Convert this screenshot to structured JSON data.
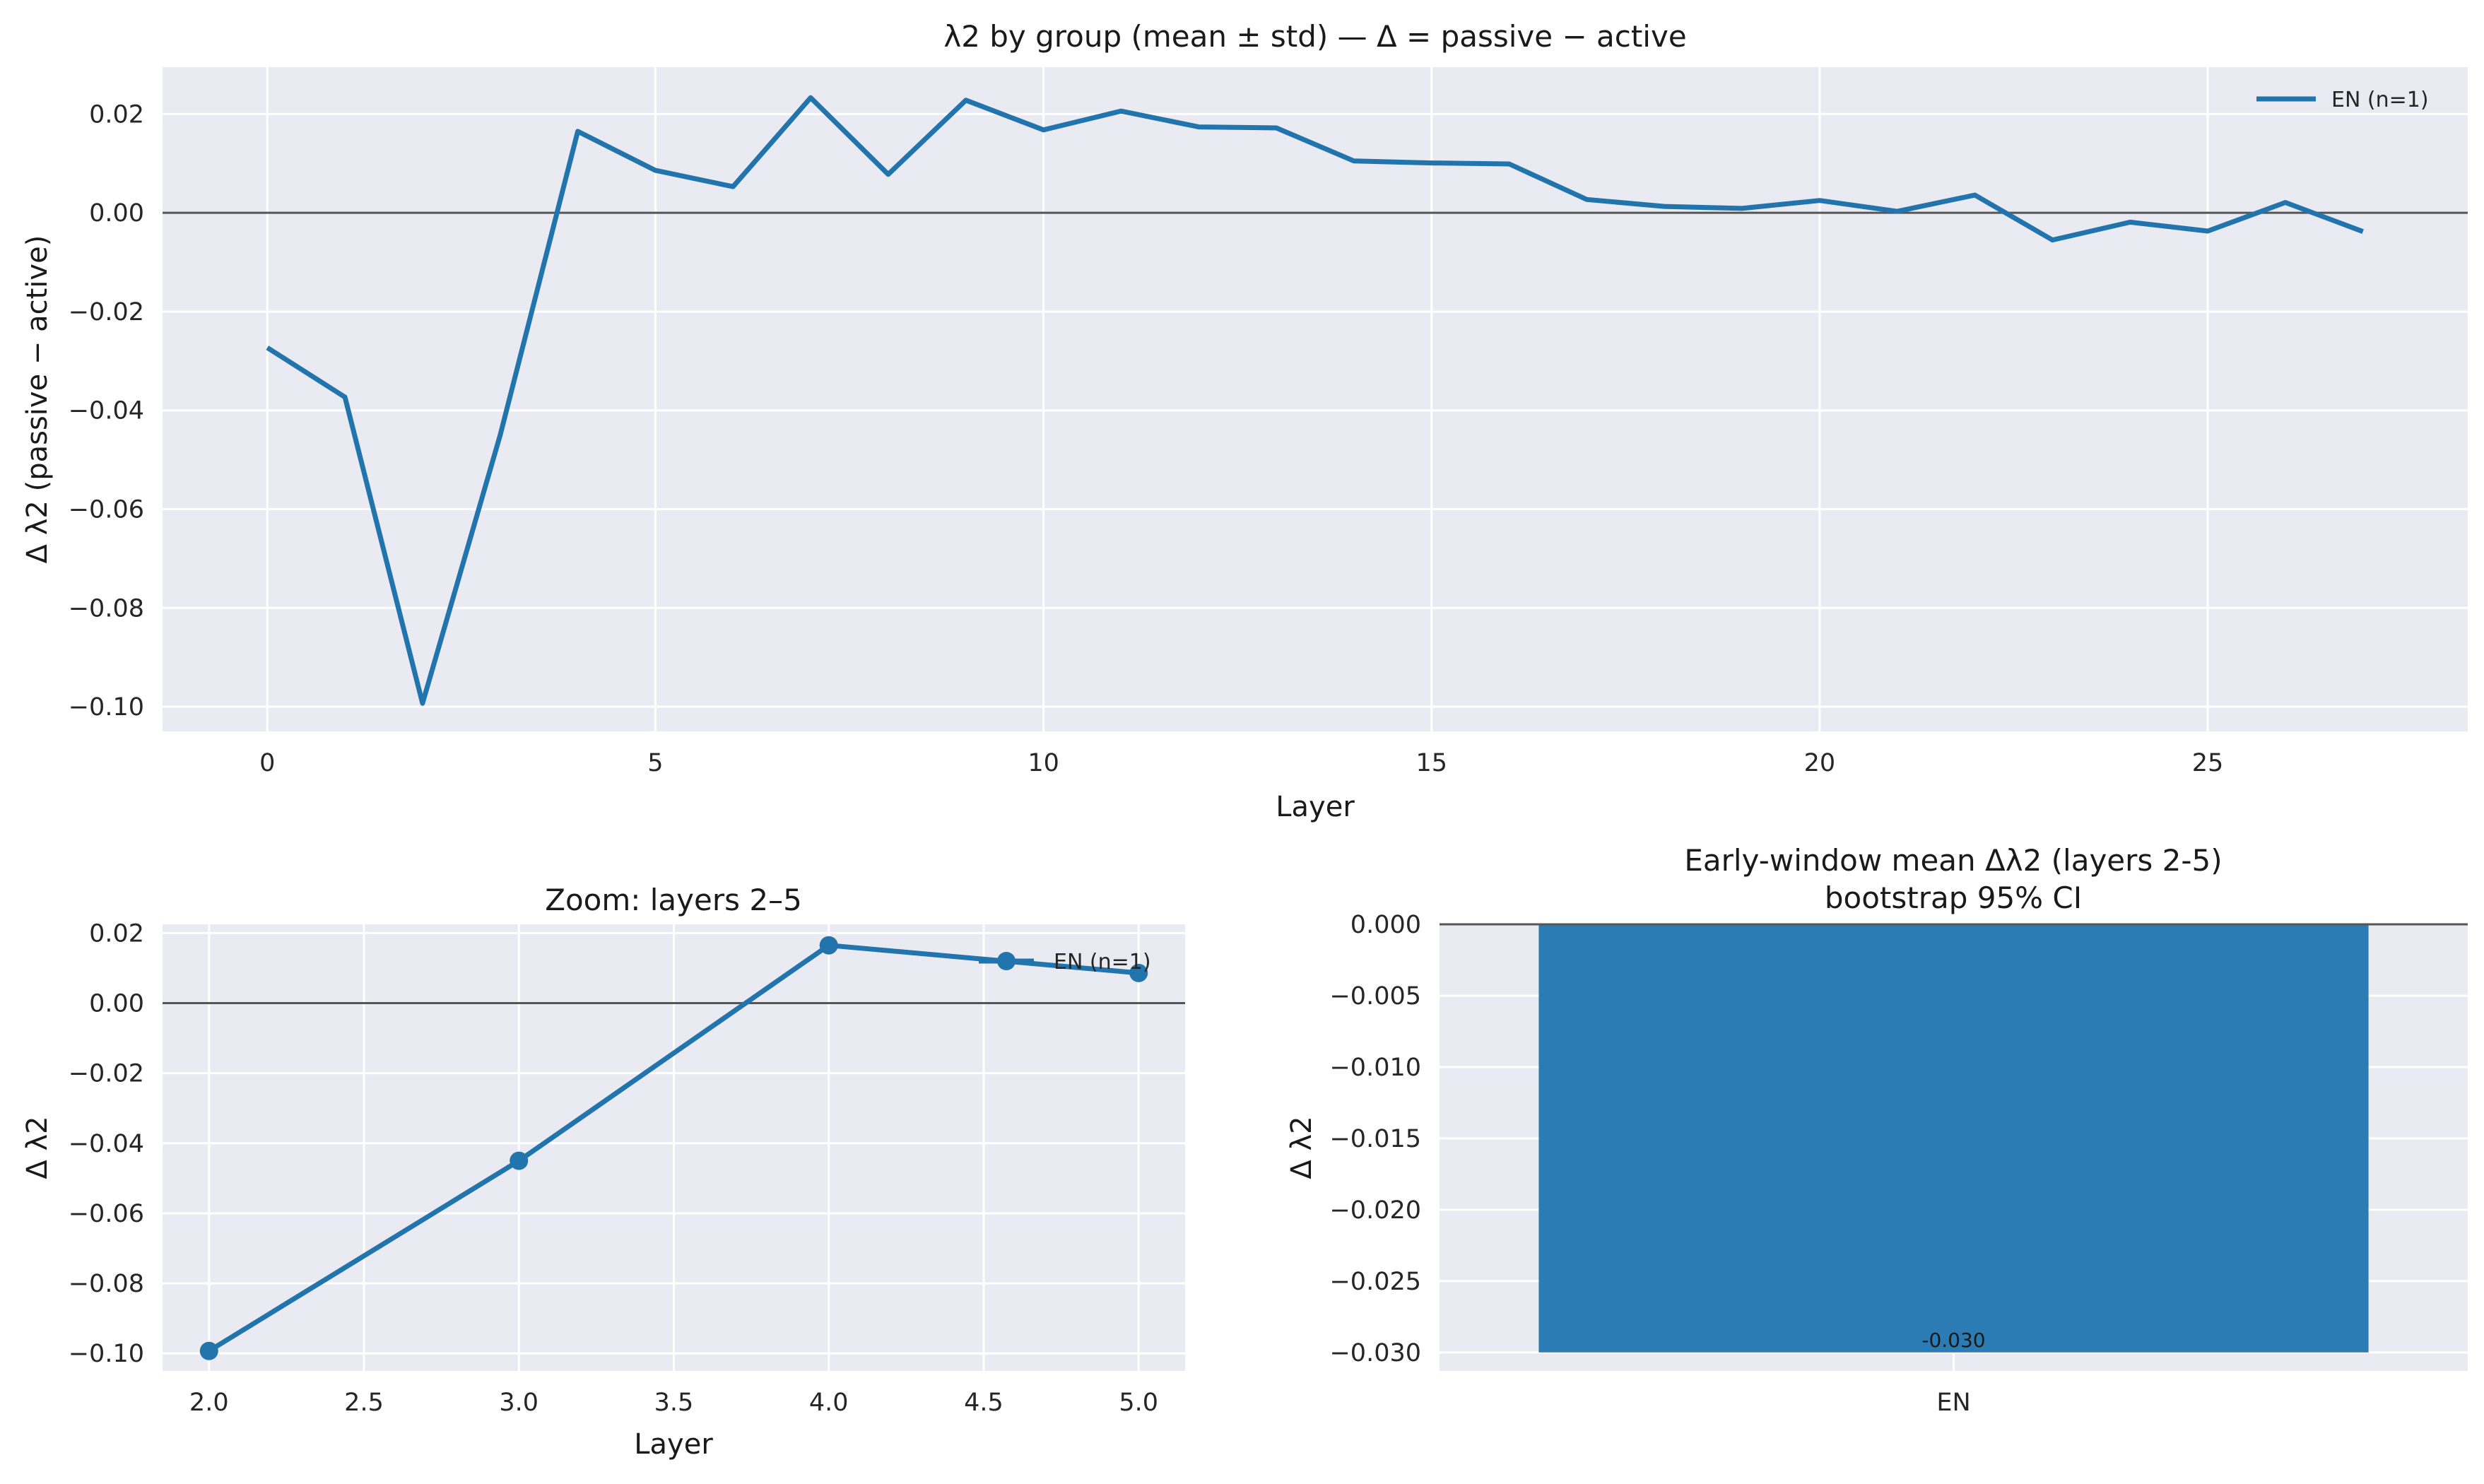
{
  "chart_data": [
    {
      "type": "line",
      "title": "λ2 by group (mean ± std) — Δ = passive − active",
      "xlabel": "Layer",
      "ylabel": "Δ λ2  (passive − active)",
      "xlim": [
        -1.35,
        28.35
      ],
      "ylim": [
        -0.105,
        0.0295
      ],
      "xticks": [
        "0",
        "5",
        "10",
        "15",
        "20",
        "25"
      ],
      "yticks": [
        "0.02",
        "0.00",
        "−0.02",
        "−0.04",
        "−0.06",
        "−0.08",
        "−0.10"
      ],
      "grid": true,
      "legend_position": "top-right",
      "series": [
        {
          "name": "EN (n=1)",
          "x": [
            0,
            1,
            2,
            3,
            4,
            5,
            6,
            7,
            8,
            9,
            10,
            11,
            12,
            13,
            14,
            15,
            16,
            17,
            18,
            19,
            20,
            21,
            22,
            23,
            24,
            25,
            26,
            27
          ],
          "values": [
            -0.0273,
            -0.0373,
            -0.0993,
            -0.045,
            0.0165,
            0.0086,
            0.0053,
            0.0233,
            0.0078,
            0.0228,
            0.0168,
            0.0206,
            0.0174,
            0.0172,
            0.0105,
            0.0101,
            0.0099,
            0.0027,
            0.0013,
            0.0009,
            0.0025,
            0.0003,
            0.0036,
            -0.0055,
            -0.0019,
            -0.0037,
            0.0021,
            -0.0038
          ]
        }
      ],
      "reference_line_y": 0
    },
    {
      "type": "line",
      "title": "Zoom: layers 2–5",
      "xlabel": "Layer",
      "ylabel": "Δ λ2",
      "xlim": [
        1.85,
        5.15
      ],
      "ylim": [
        -0.105,
        0.0225
      ],
      "xticks": [
        "2.0",
        "2.5",
        "3.0",
        "3.5",
        "4.0",
        "4.5",
        "5.0"
      ],
      "yticks": [
        "0.02",
        "0.00",
        "−0.02",
        "−0.04",
        "−0.06",
        "−0.08",
        "−0.10"
      ],
      "grid": true,
      "legend_position": "top-right",
      "series": [
        {
          "name": "EN (n=1)",
          "x": [
            2,
            3,
            4,
            5
          ],
          "values": [
            -0.0993,
            -0.045,
            0.0165,
            0.0086
          ],
          "markers": true
        }
      ],
      "reference_line_y": 0
    },
    {
      "type": "bar",
      "title": "Early-window mean Δλ2  (layers 2-5)",
      "subtitle": "bootstrap 95% CI",
      "xlabel": "",
      "ylabel": "Δ λ2",
      "categories": [
        "EN"
      ],
      "values": [
        -0.03
      ],
      "data_labels": [
        "-0.030"
      ],
      "ylim": [
        -0.0313,
        0.0
      ],
      "yticks": [
        "0.000",
        "−0.005",
        "−0.010",
        "−0.015",
        "−0.020",
        "−0.025",
        "−0.030"
      ],
      "grid": true
    }
  ],
  "colors": {
    "series": "#2274ac",
    "bar": "#2b7bb4",
    "axes_bg": "#eaeaf2",
    "grid": "#ffffff",
    "zero_line": "#555555"
  }
}
